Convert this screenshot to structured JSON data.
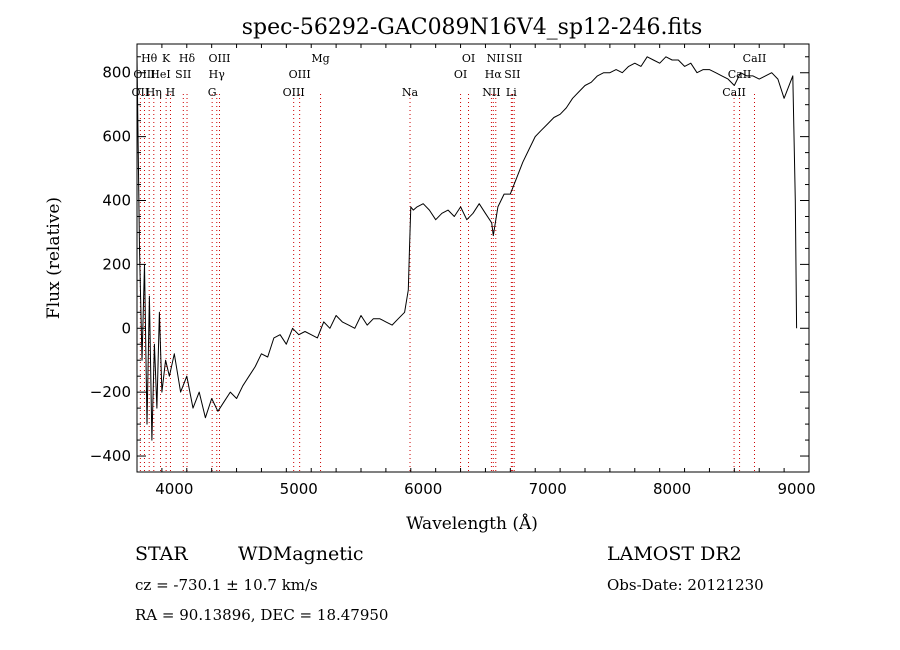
{
  "chart_data": {
    "type": "line",
    "title": "spec-56292-GAC089N16V4_sp12-246.fits",
    "xlabel": "Wavelength (Å)",
    "ylabel": "Flux (relative)",
    "xlim": [
      3700,
      9100
    ],
    "ylim": [
      -450,
      890
    ],
    "x_ticks": [
      4000,
      5000,
      6000,
      7000,
      8000,
      9000
    ],
    "x_minor_step": 200,
    "y_ticks": [
      -400,
      -200,
      0,
      200,
      400,
      600,
      800
    ],
    "y_minor_step": 50,
    "grid": false,
    "colors": {
      "series": "#000000",
      "line_markers": "#cc0000",
      "text": "#000000"
    },
    "series": [
      {
        "x": [
          3700,
          3720,
          3740,
          3760,
          3780,
          3800,
          3820,
          3840,
          3860,
          3880,
          3900,
          3930,
          3960,
          4000,
          4050,
          4100,
          4150,
          4200,
          4250,
          4300,
          4350,
          4400,
          4450,
          4500,
          4550,
          4600,
          4650,
          4700,
          4750,
          4800,
          4850,
          4900,
          4950,
          5000,
          5050,
          5100,
          5150,
          5200,
          5250,
          5300,
          5350,
          5400,
          5450,
          5500,
          5550,
          5600,
          5650,
          5700,
          5750,
          5800,
          5850,
          5880,
          5890,
          5900,
          5920,
          5950,
          6000,
          6050,
          6100,
          6150,
          6200,
          6250,
          6300,
          6350,
          6400,
          6450,
          6500,
          6550,
          6563,
          6600,
          6650,
          6700,
          6750,
          6800,
          6850,
          6900,
          6950,
          7000,
          7050,
          7100,
          7150,
          7200,
          7250,
          7300,
          7350,
          7400,
          7450,
          7500,
          7550,
          7600,
          7650,
          7700,
          7750,
          7800,
          7850,
          7900,
          7950,
          8000,
          8050,
          8100,
          8150,
          8200,
          8250,
          8300,
          8350,
          8400,
          8450,
          8500,
          8550,
          8600,
          8650,
          8700,
          8750,
          8800,
          8850,
          8900,
          8950,
          8970,
          8990,
          9000
        ],
        "y": [
          850,
          250,
          -100,
          200,
          -300,
          100,
          -350,
          -50,
          -250,
          50,
          -200,
          -100,
          -150,
          -80,
          -200,
          -150,
          -250,
          -200,
          -280,
          -220,
          -260,
          -230,
          -200,
          -220,
          -180,
          -150,
          -120,
          -80,
          -90,
          -30,
          -20,
          -50,
          0,
          -20,
          -10,
          -20,
          -30,
          20,
          0,
          40,
          20,
          10,
          0,
          40,
          10,
          30,
          30,
          20,
          10,
          30,
          50,
          120,
          250,
          380,
          370,
          380,
          390,
          370,
          340,
          360,
          370,
          350,
          380,
          340,
          360,
          390,
          360,
          330,
          290,
          380,
          420,
          420,
          470,
          520,
          560,
          600,
          620,
          640,
          660,
          670,
          690,
          720,
          740,
          760,
          770,
          790,
          800,
          800,
          810,
          800,
          820,
          830,
          820,
          850,
          840,
          830,
          850,
          840,
          840,
          820,
          830,
          800,
          810,
          810,
          800,
          790,
          780,
          760,
          800,
          790,
          790,
          780,
          790,
          800,
          780,
          720,
          770,
          790,
          400,
          0
        ],
        "sampled": true
      }
    ],
    "line_markers": [
      {
        "label": "OII",
        "x": 3727,
        "row": 2
      },
      {
        "label": "Hθ",
        "x": 3798,
        "row": 0
      },
      {
        "label": "OIII",
        "x": 3760,
        "row": 1
      },
      {
        "label": "Hη",
        "x": 3835,
        "row": 2
      },
      {
        "label": "HeI",
        "x": 3889,
        "row": 1
      },
      {
        "label": "K",
        "x": 3934,
        "row": 0
      },
      {
        "label": "H",
        "x": 3969,
        "row": 2
      },
      {
        "label": "SII",
        "x": 4072,
        "row": 1
      },
      {
        "label": "Hδ",
        "x": 4102,
        "row": 0
      },
      {
        "label": "G",
        "x": 4304,
        "row": 2
      },
      {
        "label": "Hγ",
        "x": 4341,
        "row": 1
      },
      {
        "label": "OIII",
        "x": 4363,
        "row": 0
      },
      {
        "label": "OIII",
        "x": 4959,
        "row": 2
      },
      {
        "label": "OIII",
        "x": 5007,
        "row": 1
      },
      {
        "label": "Mg",
        "x": 5175,
        "row": 0
      },
      {
        "label": "Na",
        "x": 5894,
        "row": 2
      },
      {
        "label": "OI",
        "x": 6300,
        "row": 1
      },
      {
        "label": "OI",
        "x": 6364,
        "row": 0
      },
      {
        "label": "NII",
        "x": 6548,
        "row": 2
      },
      {
        "label": "Hα",
        "x": 6563,
        "row": 1
      },
      {
        "label": "NII",
        "x": 6583,
        "row": 0
      },
      {
        "label": "Li",
        "x": 6708,
        "row": 2
      },
      {
        "label": "SII",
        "x": 6716,
        "row": 1
      },
      {
        "label": "SII",
        "x": 6731,
        "row": 0
      },
      {
        "label": "CaII",
        "x": 8498,
        "row": 2
      },
      {
        "label": "CaII",
        "x": 8542,
        "row": 1
      },
      {
        "label": "CaII",
        "x": 8662,
        "row": 0
      }
    ]
  },
  "info": {
    "class": "STAR",
    "subclass": "WDMagnetic",
    "survey": "LAMOST DR2",
    "cz": "cz = -730.1 ± 10.7 km/s",
    "obs_date": "Obs-Date: 20121230",
    "coords": "RA =  90.13896, DEC =  18.47950"
  }
}
